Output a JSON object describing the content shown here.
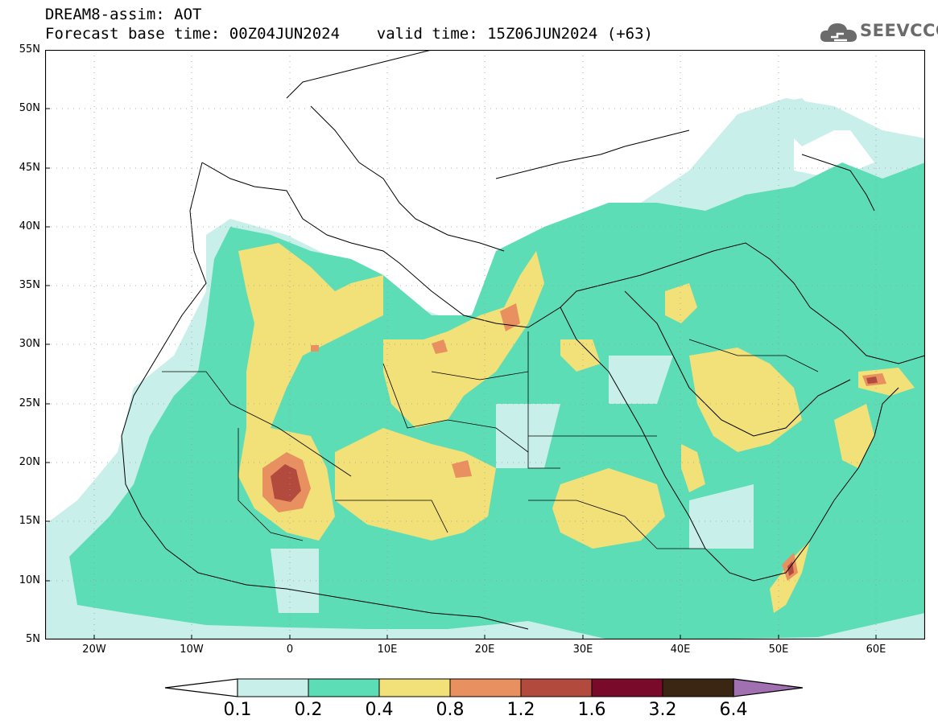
{
  "header": {
    "line1": "DREAM8-assim: AOT",
    "line2": "Forecast base time: 00Z04JUN2024    valid time: 15Z06JUN2024 (+63)"
  },
  "logo": {
    "text": "SEEVCCC",
    "icon": "cloud-icon"
  },
  "map": {
    "lon_range": [
      -25,
      65
    ],
    "lat_range": [
      5,
      55
    ],
    "lat_labels": [
      "55N",
      "50N",
      "45N",
      "40N",
      "35N",
      "30N",
      "25N",
      "20N",
      "15N",
      "10N",
      "5N"
    ],
    "lon_labels": [
      "20W",
      "10W",
      "0",
      "10E",
      "20E",
      "30E",
      "40E",
      "50E",
      "60E"
    ],
    "gridlines": "dotted"
  },
  "legend": {
    "boundaries": [
      "0.1",
      "0.2",
      "0.4",
      "0.8",
      "1.2",
      "1.6",
      "3.2",
      "6.4"
    ],
    "colors": [
      "#c9efea",
      "#5dddb6",
      "#f2e079",
      "#e8905f",
      "#b24b3e",
      "#7a0a2a",
      "#3a2612",
      "#a070b0"
    ]
  },
  "colors": {
    "c1": "#c9efea",
    "c2": "#5dddb6",
    "c3": "#f2e079",
    "c4": "#e8905f",
    "c5": "#b24b3e"
  }
}
